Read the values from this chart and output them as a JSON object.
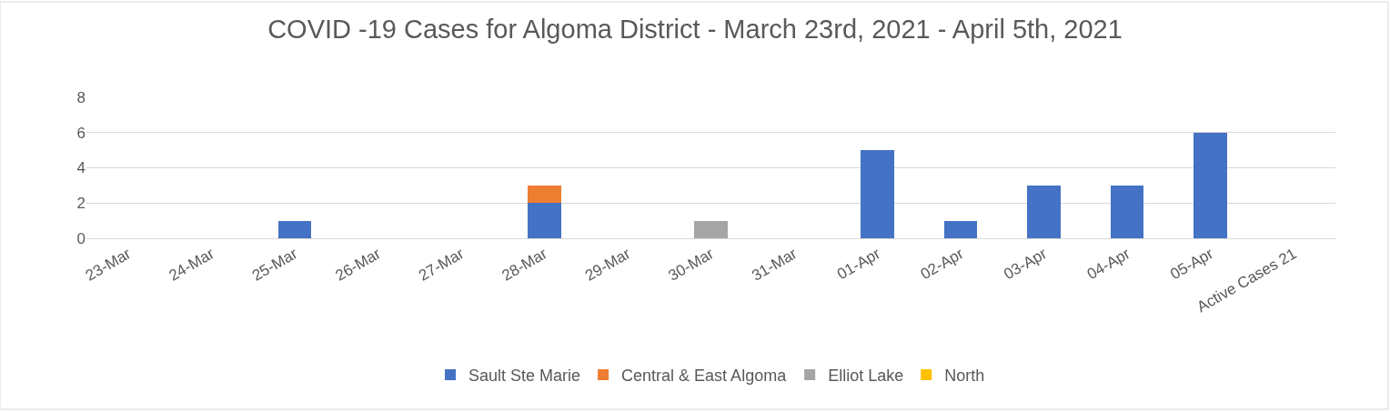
{
  "chart_data": {
    "type": "bar",
    "title": "COVID -19 Cases for Algoma District - March 23rd, 2021 - April 5th, 2021",
    "categories": [
      "23-Mar",
      "24-Mar",
      "25-Mar",
      "26-Mar",
      "27-Mar",
      "28-Mar",
      "29-Mar",
      "30-Mar",
      "31-Mar",
      "01-Apr",
      "02-Apr",
      "03-Apr",
      "04-Apr",
      "05-Apr",
      "Active Cases 21"
    ],
    "stacked": true,
    "series": [
      {
        "name": "Sault Ste Marie",
        "color": "#4472c4",
        "values": [
          0,
          0,
          1,
          0,
          0,
          2,
          0,
          0,
          0,
          5,
          1,
          3,
          3,
          6,
          null
        ]
      },
      {
        "name": "Central & East Algoma",
        "color": "#ed7d31",
        "values": [
          0,
          0,
          0,
          0,
          0,
          1,
          0,
          0,
          0,
          0,
          0,
          0,
          0,
          0,
          null
        ]
      },
      {
        "name": "Elliot Lake",
        "color": "#a5a5a5",
        "values": [
          0,
          0,
          0,
          0,
          0,
          0,
          0,
          1,
          0,
          0,
          0,
          0,
          0,
          0,
          null
        ]
      },
      {
        "name": "North",
        "color": "#ffc000",
        "values": [
          0,
          0,
          0,
          0,
          0,
          0,
          0,
          0,
          0,
          0,
          0,
          0,
          0,
          0,
          null
        ]
      }
    ],
    "ylim": [
      0,
      8
    ],
    "yticks": [
      0,
      2,
      4,
      6,
      8
    ],
    "grid": "y",
    "legend": "bottom"
  }
}
